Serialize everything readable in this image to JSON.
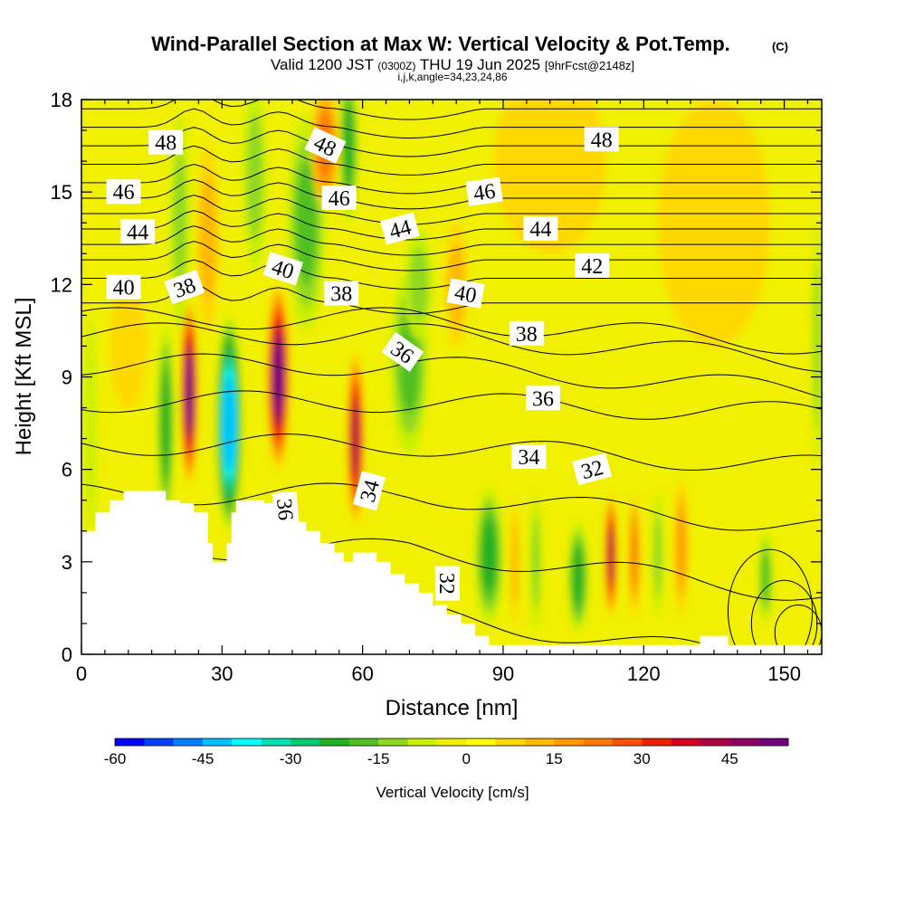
{
  "chart_data": {
    "type": "heatmap",
    "title": "Wind-Parallel Section at Max W: Vertical Velocity & Pot.Temp.",
    "title_mark": "(C)",
    "subtitle_main": "Valid 1200 JST",
    "subtitle_zulu": "(0300Z)",
    "subtitle_date": "THU 19 Jun 2025",
    "subtitle_fcst": "[9hrFcst@2148z]",
    "subtitle_indices": "i,j,k,angle=34,23,24,86",
    "xlabel": "Distance [nm]",
    "ylabel": "Height [Kft MSL]",
    "xlim": [
      0,
      158
    ],
    "ylim": [
      0,
      18
    ],
    "x_ticks": [
      0,
      30,
      60,
      90,
      120,
      150
    ],
    "x_tick_labels": [
      "0",
      "30",
      "60",
      "90",
      "120",
      "150"
    ],
    "y_ticks": [
      0,
      3,
      6,
      9,
      12,
      15,
      18
    ],
    "y_tick_labels": [
      "0",
      "3",
      "6",
      "9",
      "12",
      "15",
      "18"
    ],
    "colorbar": {
      "label": "Vertical Velocity [cm/s]",
      "min": -60,
      "max": 55,
      "step": 5,
      "tick_values": [
        -60,
        -45,
        -30,
        -15,
        0,
        15,
        30,
        45
      ],
      "tick_labels": [
        "-60",
        "-45",
        "-30",
        "-15",
        "0",
        "15",
        "30",
        "45"
      ],
      "colors": [
        "#0000ff",
        "#0040ff",
        "#0080ff",
        "#00c0ff",
        "#00ffff",
        "#00e0b0",
        "#00c870",
        "#20b020",
        "#50c020",
        "#90d820",
        "#c8f000",
        "#f0f000",
        "#ffff00",
        "#ffd800",
        "#ffb800",
        "#ff9800",
        "#ff7800",
        "#ff5000",
        "#f02000",
        "#d80020",
        "#b00040",
        "#900060",
        "#700080"
      ]
    },
    "terrain_kft": [
      [
        0,
        4
      ],
      [
        3,
        4
      ],
      [
        3,
        4.6
      ],
      [
        6,
        4.6
      ],
      [
        6,
        5
      ],
      [
        9,
        5
      ],
      [
        9,
        5.3
      ],
      [
        18,
        5.3
      ],
      [
        18,
        5
      ],
      [
        21,
        5
      ],
      [
        21,
        4.9
      ],
      [
        24,
        4.9
      ],
      [
        24,
        4.6
      ],
      [
        27,
        4.6
      ],
      [
        27,
        3.6
      ],
      [
        28,
        3.6
      ],
      [
        28,
        3
      ],
      [
        31,
        3
      ],
      [
        31,
        3.6
      ],
      [
        32,
        3.6
      ],
      [
        32,
        4.6
      ],
      [
        33,
        4.6
      ],
      [
        33,
        5
      ],
      [
        39,
        5
      ],
      [
        39,
        4.9
      ],
      [
        45,
        4.9
      ],
      [
        45,
        4.3
      ],
      [
        48,
        4.3
      ],
      [
        48,
        4
      ],
      [
        51,
        4
      ],
      [
        51,
        3.6
      ],
      [
        54,
        3.6
      ],
      [
        54,
        3.3
      ],
      [
        56,
        3.3
      ],
      [
        56,
        3
      ],
      [
        58,
        3
      ],
      [
        58,
        3.3
      ],
      [
        63,
        3.3
      ],
      [
        63,
        3
      ],
      [
        66,
        3
      ],
      [
        66,
        2.6
      ],
      [
        69,
        2.6
      ],
      [
        69,
        2.3
      ],
      [
        72,
        2.3
      ],
      [
        72,
        2
      ],
      [
        75,
        2
      ],
      [
        75,
        1.6
      ],
      [
        78,
        1.6
      ],
      [
        78,
        1.3
      ],
      [
        81,
        1.3
      ],
      [
        81,
        1
      ],
      [
        84,
        1
      ],
      [
        84,
        0.6
      ],
      [
        87,
        0.6
      ],
      [
        87,
        0.3
      ],
      [
        132,
        0.3
      ],
      [
        132,
        0.6
      ],
      [
        138,
        0.6
      ],
      [
        138,
        0.3
      ],
      [
        158,
        0.3
      ]
    ],
    "w_cells": [
      {
        "x": 2,
        "y": 7.5,
        "w": 1.2,
        "h": 3.5,
        "v": -6
      },
      {
        "x": 18,
        "y": 7.5,
        "w": 1.8,
        "h": 3.2,
        "v": -18
      },
      {
        "x": 23,
        "y": 8.5,
        "w": 1.8,
        "h": 3.0,
        "v": 48
      },
      {
        "x": 31.5,
        "y": 7.5,
        "w": 2.8,
        "h": 3.5,
        "v": -38
      },
      {
        "x": 34,
        "y": 3.8,
        "w": 1.2,
        "h": 1.2,
        "v": 20
      },
      {
        "x": 42,
        "y": 9,
        "w": 2.4,
        "h": 3.0,
        "v": 50
      },
      {
        "x": 48,
        "y": 14,
        "w": 4,
        "h": 3.5,
        "v": -15
      },
      {
        "x": 52,
        "y": 16.5,
        "w": 3,
        "h": 2,
        "v": 20
      },
      {
        "x": 57,
        "y": 16.5,
        "w": 2,
        "h": 2.5,
        "v": -22
      },
      {
        "x": 58.5,
        "y": 7,
        "w": 1.8,
        "h": 2.8,
        "v": 38
      },
      {
        "x": 70,
        "y": 9.5,
        "w": 4,
        "h": 3,
        "v": -15
      },
      {
        "x": 72,
        "y": 12,
        "w": 3,
        "h": 1.8,
        "v": -10
      },
      {
        "x": 21,
        "y": 14,
        "w": 2,
        "h": 3.5,
        "v": -8
      },
      {
        "x": 27,
        "y": 13.5,
        "w": 2.5,
        "h": 3,
        "v": 8
      },
      {
        "x": 37,
        "y": 15.5,
        "w": 2.5,
        "h": 3,
        "v": -8
      },
      {
        "x": 80,
        "y": 12,
        "w": 2.5,
        "h": 2,
        "v": 12
      },
      {
        "x": 87,
        "y": 3.2,
        "w": 3,
        "h": 2.2,
        "v": -18
      },
      {
        "x": 92.5,
        "y": 3,
        "w": 1,
        "h": 2,
        "v": 10
      },
      {
        "x": 97,
        "y": 3,
        "w": 1.2,
        "h": 2.2,
        "v": -10
      },
      {
        "x": 106,
        "y": 2.5,
        "w": 2.2,
        "h": 1.8,
        "v": -22
      },
      {
        "x": 113,
        "y": 3.2,
        "w": 1.3,
        "h": 2,
        "v": 40
      },
      {
        "x": 118,
        "y": 3.2,
        "w": 1.2,
        "h": 2,
        "v": 22
      },
      {
        "x": 123,
        "y": 3.2,
        "w": 1.2,
        "h": 2,
        "v": -8
      },
      {
        "x": 128,
        "y": 3.5,
        "w": 1.5,
        "h": 2.2,
        "v": 16
      },
      {
        "x": 146,
        "y": 2.5,
        "w": 1.5,
        "h": 1.5,
        "v": -15
      },
      {
        "x": 157,
        "y": 10,
        "w": 1,
        "h": 4,
        "v": -8
      },
      {
        "x": 100,
        "y": 16,
        "w": 12,
        "h": 3,
        "v": 6
      },
      {
        "x": 135,
        "y": 14,
        "w": 12,
        "h": 4,
        "v": 5
      },
      {
        "x": 10,
        "y": 10,
        "w": 4,
        "h": 2,
        "v": 5
      }
    ],
    "theta_contour_labels": [
      {
        "text": "48",
        "x": 18,
        "y": 16.6,
        "angle": 0
      },
      {
        "text": "48",
        "x": 52,
        "y": 16.5,
        "angle": 25
      },
      {
        "text": "48",
        "x": 111,
        "y": 16.7,
        "angle": 0
      },
      {
        "text": "46",
        "x": 9,
        "y": 15,
        "angle": 0
      },
      {
        "text": "46",
        "x": 55,
        "y": 14.8,
        "angle": 0
      },
      {
        "text": "46",
        "x": 86,
        "y": 15,
        "angle": -8
      },
      {
        "text": "44",
        "x": 12,
        "y": 13.7,
        "angle": 0
      },
      {
        "text": "44",
        "x": 68,
        "y": 13.8,
        "angle": -15
      },
      {
        "text": "44",
        "x": 98,
        "y": 13.8,
        "angle": 0
      },
      {
        "text": "42",
        "x": 109,
        "y": 12.6,
        "angle": 0
      },
      {
        "text": "40",
        "x": 9,
        "y": 11.9,
        "angle": 0
      },
      {
        "text": "40",
        "x": 43,
        "y": 12.5,
        "angle": 18
      },
      {
        "text": "40",
        "x": 82,
        "y": 11.7,
        "angle": 10
      },
      {
        "text": "38",
        "x": 22,
        "y": 11.9,
        "angle": -20
      },
      {
        "text": "38",
        "x": 55.5,
        "y": 11.7,
        "angle": 0
      },
      {
        "text": "38",
        "x": 95,
        "y": 10.4,
        "angle": 0
      },
      {
        "text": "36",
        "x": 68.5,
        "y": 9.8,
        "angle": 35
      },
      {
        "text": "36",
        "x": 98.5,
        "y": 8.3,
        "angle": 0
      },
      {
        "text": "36",
        "x": 43.5,
        "y": 4.7,
        "angle": 85
      },
      {
        "text": "34",
        "x": 95.5,
        "y": 6.4,
        "angle": 0
      },
      {
        "text": "34",
        "x": 61.5,
        "y": 5.3,
        "angle": -75
      },
      {
        "text": "32",
        "x": 109,
        "y": 6,
        "angle": -15
      },
      {
        "text": "32",
        "x": 78,
        "y": 2.3,
        "angle": 90
      }
    ]
  }
}
